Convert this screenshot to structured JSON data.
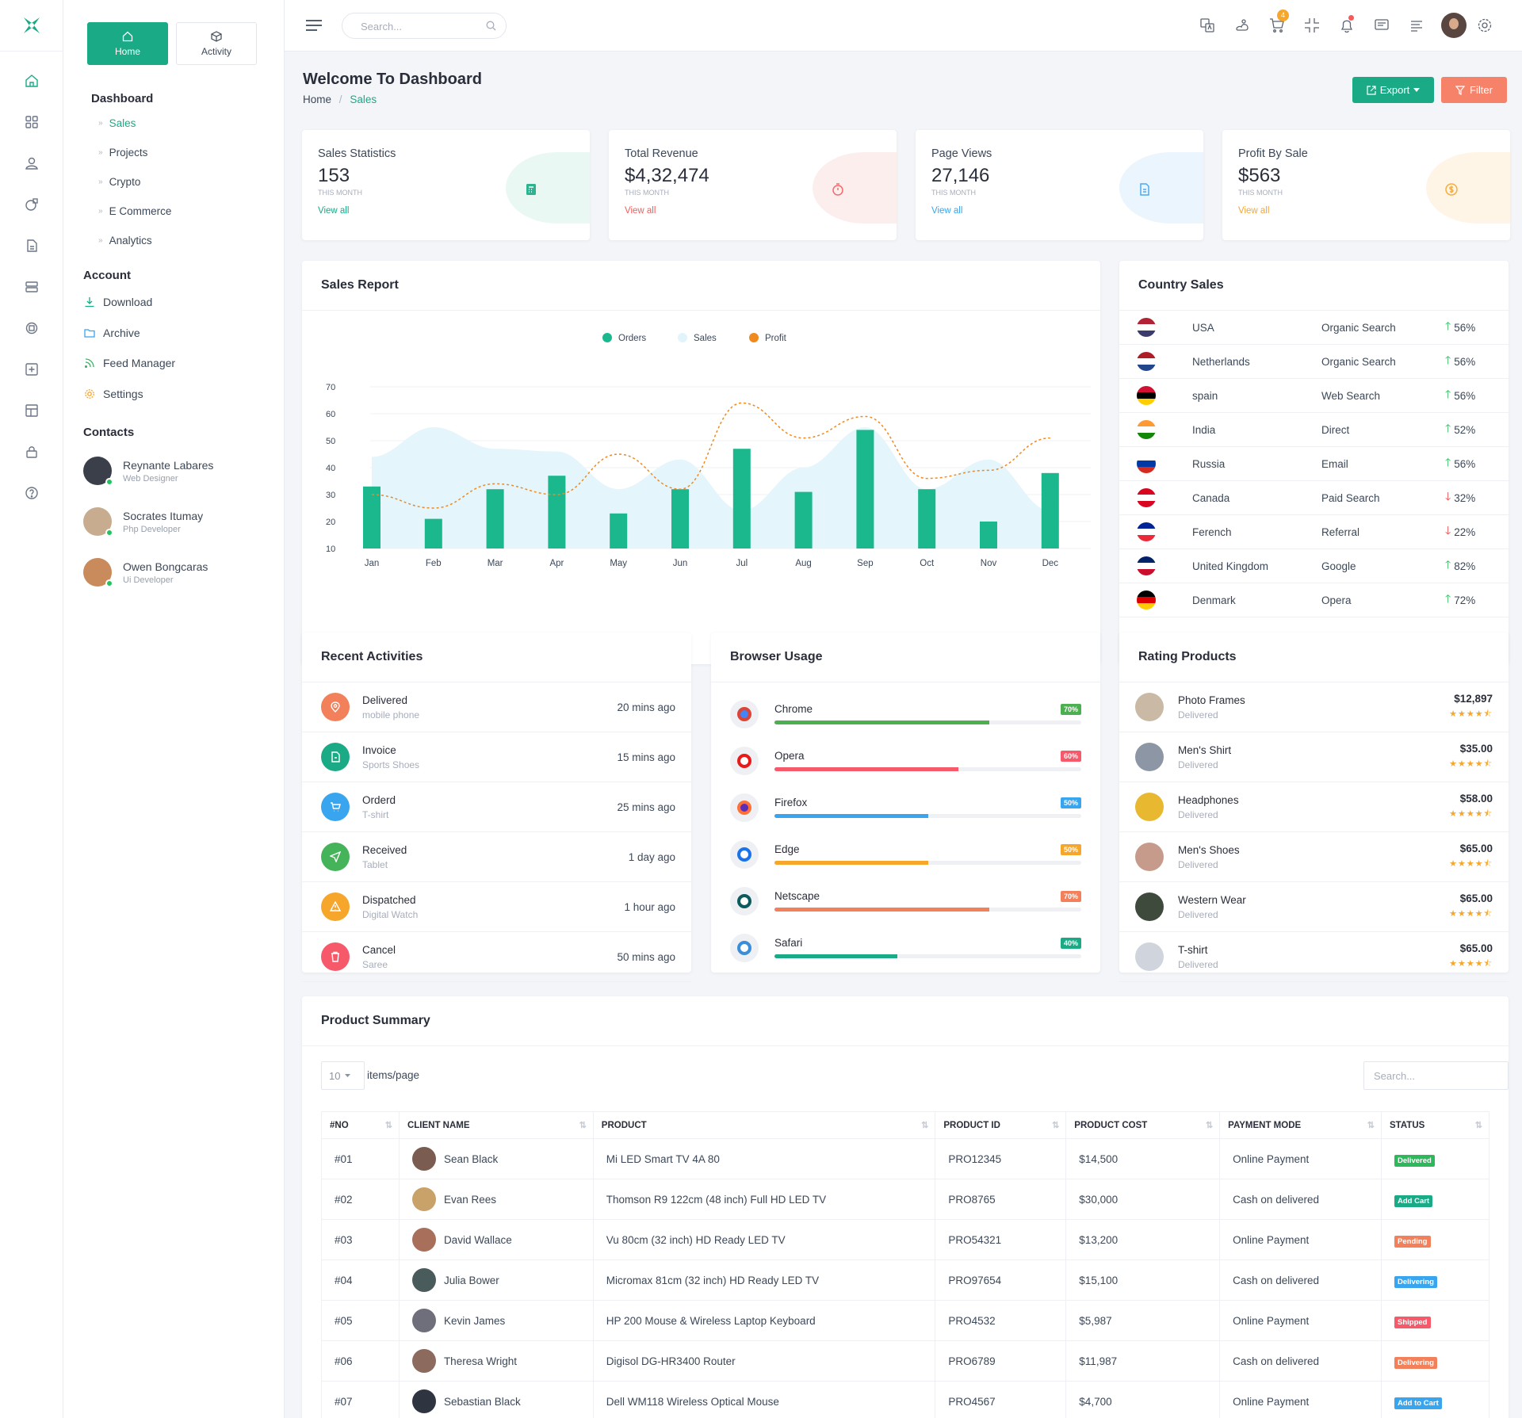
{
  "search": {
    "placeholder": "Search..."
  },
  "cart_count": "4",
  "side": {
    "tab_home": "Home",
    "tab_activity": "Activity",
    "dashboard_title": "Dashboard",
    "dashboard_items": [
      "Sales",
      "Projects",
      "Crypto",
      "E Commerce",
      "Analytics"
    ],
    "account_title": "Account",
    "account_items": [
      "Download",
      "Archive",
      "Feed Manager",
      "Settings"
    ],
    "contacts_title": "Contacts",
    "contacts": [
      {
        "name": "Reynante Labares",
        "role": "Web Designer"
      },
      {
        "name": "Socrates Itumay",
        "role": "Php Developer"
      },
      {
        "name": "Owen Bongcaras",
        "role": "Ui Developer"
      }
    ]
  },
  "page": {
    "title": "Welcome To Dashboard",
    "crumb_home": "Home",
    "crumb_sep": "/",
    "crumb_current": "Sales",
    "export_label": "Export",
    "filter_label": "Filter"
  },
  "stats": [
    {
      "label": "Sales Statistics",
      "value": "153",
      "sub": "THIS MONTH",
      "link": "View all",
      "color": "#1aaa86",
      "bg": "#eaf8f4"
    },
    {
      "label": "Total Revenue",
      "value": "$4,32,474",
      "sub": "THIS MONTH",
      "link": "View all",
      "color": "#f65a5a",
      "bg": "#fdeeee"
    },
    {
      "label": "Page Views",
      "value": "27,146",
      "sub": "THIS MONTH",
      "link": "View all",
      "color": "#39a5ef",
      "bg": "#eaf5fd"
    },
    {
      "label": "Profit By Sale",
      "value": "$563",
      "sub": "THIS MONTH",
      "link": "View all",
      "color": "#f7a62c",
      "bg": "#fef5e7"
    }
  ],
  "sales_report": {
    "title": "Sales Report"
  },
  "chart_data": {
    "type": "bar",
    "categories": [
      "Jan",
      "Feb",
      "Mar",
      "Apr",
      "May",
      "Jun",
      "Jul",
      "Aug",
      "Sep",
      "Oct",
      "Nov",
      "Dec"
    ],
    "series": [
      {
        "name": "Orders",
        "kind": "bar",
        "color": "#1ab88c",
        "values": [
          33,
          21,
          32,
          37,
          23,
          32,
          47,
          31,
          54,
          32,
          20,
          38
        ]
      },
      {
        "name": "Sales",
        "kind": "area",
        "color": "#e2f4fb",
        "values": [
          44,
          55,
          47,
          46,
          32,
          43,
          24,
          40,
          55,
          32,
          43,
          24
        ]
      },
      {
        "name": "Profit",
        "kind": "line",
        "color": "#f08a1e",
        "values": [
          30,
          25,
          34,
          30,
          45,
          32,
          64,
          51,
          59,
          36,
          39,
          51
        ]
      }
    ],
    "yticks": [
      10,
      20,
      30,
      40,
      50,
      60,
      70
    ],
    "ylim": [
      10,
      70
    ],
    "legend": "top-center",
    "grid": true
  },
  "country_sales": {
    "title": "Country Sales",
    "rows": [
      {
        "country": "USA",
        "source": "Organic Search",
        "pct": "56%",
        "dir": "up"
      },
      {
        "country": "Netherlands",
        "source": "Organic Search",
        "pct": "56%",
        "dir": "up"
      },
      {
        "country": "spain",
        "source": "Web Search",
        "pct": "56%",
        "dir": "up"
      },
      {
        "country": "India",
        "source": "Direct",
        "pct": "52%",
        "dir": "up"
      },
      {
        "country": "Russia",
        "source": "Email",
        "pct": "56%",
        "dir": "up"
      },
      {
        "country": "Canada",
        "source": "Paid Search",
        "pct": "32%",
        "dir": "down"
      },
      {
        "country": "Ferench",
        "source": "Referral",
        "pct": "22%",
        "dir": "down"
      },
      {
        "country": "United Kingdom",
        "source": "Google",
        "pct": "82%",
        "dir": "up"
      },
      {
        "country": "Denmark",
        "source": "Opera",
        "pct": "72%",
        "dir": "up"
      }
    ]
  },
  "recent": {
    "title": "Recent Activities",
    "items": [
      {
        "title": "Delivered",
        "sub": "mobile phone",
        "time": "20 mins ago",
        "color": "#f2805a",
        "icon": "map-pin-icon"
      },
      {
        "title": "Invoice",
        "sub": "Sports Shoes",
        "time": "15 mins ago",
        "color": "#1aaa86",
        "icon": "document-icon"
      },
      {
        "title": "Orderd",
        "sub": "T-shirt",
        "time": "25 mins ago",
        "color": "#39a5ef",
        "icon": "cart-icon"
      },
      {
        "title": "Received",
        "sub": "Tablet",
        "time": "1 day ago",
        "color": "#44b35a",
        "icon": "send-icon"
      },
      {
        "title": "Dispatched",
        "sub": "Digital Watch",
        "time": "1 hour ago",
        "color": "#f7a62c",
        "icon": "warning-icon"
      },
      {
        "title": "Cancel",
        "sub": "Saree",
        "time": "50 mins ago",
        "color": "#f65a6a",
        "icon": "trash-icon"
      }
    ]
  },
  "browser": {
    "title": "Browser Usage",
    "items": [
      {
        "name": "Chrome",
        "pct": "70%",
        "value": 0.7,
        "color": "#4cb050"
      },
      {
        "name": "Opera",
        "pct": "60%",
        "value": 0.6,
        "color": "#f65a6a"
      },
      {
        "name": "Firefox",
        "pct": "50%",
        "value": 0.5,
        "color": "#39a5ef"
      },
      {
        "name": "Edge",
        "pct": "50%",
        "value": 0.5,
        "color": "#f7a62c"
      },
      {
        "name": "Netscape",
        "pct": "70%",
        "value": 0.7,
        "color": "#f2805a"
      },
      {
        "name": "Safari",
        "pct": "40%",
        "value": 0.4,
        "color": "#1aaa86"
      }
    ]
  },
  "rating": {
    "title": "Rating Products",
    "items": [
      {
        "name": "Photo Frames",
        "sub": "Delivered",
        "price": "$12,897",
        "stars": 4.5
      },
      {
        "name": "Men's Shirt",
        "sub": "Delivered",
        "price": "$35.00",
        "stars": 4.5
      },
      {
        "name": "Headphones",
        "sub": "Delivered",
        "price": "$58.00",
        "stars": 4.5
      },
      {
        "name": "Men's Shoes",
        "sub": "Delivered",
        "price": "$65.00",
        "stars": 4.5
      },
      {
        "name": "Western Wear",
        "sub": "Delivered",
        "price": "$65.00",
        "stars": 4.5
      },
      {
        "name": "T-shirt",
        "sub": "Delivered",
        "price": "$65.00",
        "stars": 4.5
      }
    ]
  },
  "summary": {
    "title": "Product Summary",
    "per_page": "10",
    "per_page_label": "items/page",
    "search_placeholder": "Search...",
    "columns": [
      "#NO",
      "CLIENT NAME",
      "PRODUCT",
      "PRODUCT ID",
      "PRODUCT COST",
      "PAYMENT MODE",
      "STATUS"
    ],
    "rows": [
      {
        "no": "#01",
        "client": "Sean Black",
        "product": "Mi LED Smart TV 4A 80",
        "id": "PRO12345",
        "cost": "$14,500",
        "mode": "Online Payment",
        "status": "Delivered",
        "status_color": "#2eb85c"
      },
      {
        "no": "#02",
        "client": "Evan Rees",
        "product": "Thomson R9 122cm (48 inch) Full HD LED TV",
        "id": "PRO8765",
        "cost": "$30,000",
        "mode": "Cash on delivered",
        "status": "Add Cart",
        "status_color": "#1aaa86"
      },
      {
        "no": "#03",
        "client": "David Wallace",
        "product": "Vu 80cm (32 inch) HD Ready LED TV",
        "id": "PRO54321",
        "cost": "$13,200",
        "mode": "Online Payment",
        "status": "Pending",
        "status_color": "#f2805a"
      },
      {
        "no": "#04",
        "client": "Julia Bower",
        "product": "Micromax 81cm (32 inch) HD Ready LED TV",
        "id": "PRO97654",
        "cost": "$15,100",
        "mode": "Cash on delivered",
        "status": "Delivering",
        "status_color": "#39a5ef"
      },
      {
        "no": "#05",
        "client": "Kevin James",
        "product": "HP 200 Mouse & Wireless Laptop Keyboard",
        "id": "PRO4532",
        "cost": "$5,987",
        "mode": "Online Payment",
        "status": "Shipped",
        "status_color": "#f65a6a"
      },
      {
        "no": "#06",
        "client": "Theresa Wright",
        "product": "Digisol DG-HR3400 Router",
        "id": "PRO6789",
        "cost": "$11,987",
        "mode": "Cash on delivered",
        "status": "Delivering",
        "status_color": "#f2805a"
      },
      {
        "no": "#07",
        "client": "Sebastian Black",
        "product": "Dell WM118 Wireless Optical Mouse",
        "id": "PRO4567",
        "cost": "$4,700",
        "mode": "Online Payment",
        "status": "Add to Cart",
        "status_color": "#39a5ef"
      }
    ]
  }
}
